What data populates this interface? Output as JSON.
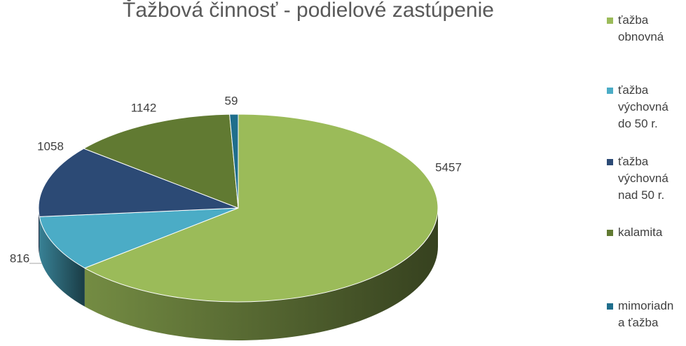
{
  "chart_data": {
    "type": "pie",
    "title": "Ťažbová činnosť - podielové zastúpenie",
    "categories": [
      "ťažba obnovná",
      "ťažba výchovná do 50 r.",
      "ťažba výchovná nad 50 r.",
      "kalamita",
      "mimoriadna ťažba"
    ],
    "values": [
      5457,
      816,
      1058,
      1142,
      59
    ],
    "colors": [
      "#9bbb59",
      "#4bacc6",
      "#2c4a75",
      "#617a32",
      "#1f6e8c"
    ],
    "legend": "right"
  }
}
